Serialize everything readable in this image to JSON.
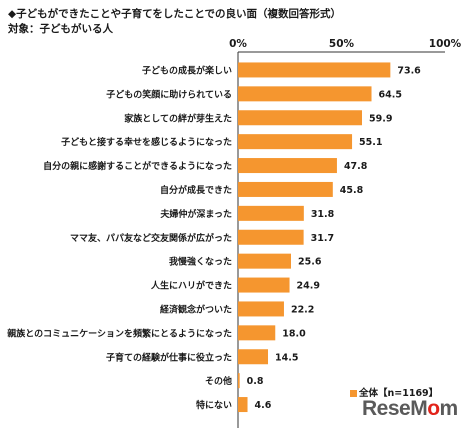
{
  "header": {
    "title": "◆子どもができたことや子育てをしたことでの良い面（複数回答形式）",
    "subtitle": "対象：子どもがいる人"
  },
  "legend": {
    "label": "全体【n=1169】"
  },
  "logo": {
    "text_main": "ReseM",
    "text_accent": "o",
    "text_end": "m"
  },
  "colors": {
    "bar": "#f5962f",
    "axis": "#333333"
  },
  "chart_data": {
    "type": "bar",
    "orientation": "horizontal",
    "title": "◆子どもができたことや子育てをしたことでの良い面（複数回答形式）",
    "xlim": [
      0,
      100
    ],
    "ticks": [
      "0%",
      "50%",
      "100%"
    ],
    "grid": false,
    "legend_position": "bottom-right",
    "categories": [
      "子どもの成長が楽しい",
      "子どもの笑顔に助けられている",
      "家族としての絆が芽生えた",
      "子どもと接する幸せを感じるようになった",
      "自分の親に感謝することができるようになった",
      "自分が成長できた",
      "夫婦仲が深まった",
      "ママ友、パパ友など交友関係が広がった",
      "我慢強くなった",
      "人生にハリができた",
      "経済観念がついた",
      "親族とのコミュニケーションを頻繁にとるようになった",
      "子育ての経験が仕事に役立った",
      "その他",
      "特にない"
    ],
    "values": [
      73.6,
      64.5,
      59.9,
      55.1,
      47.8,
      45.8,
      31.8,
      31.7,
      25.6,
      24.9,
      22.2,
      18.0,
      14.5,
      0.8,
      4.6
    ],
    "value_labels": [
      "73.6",
      "64.5",
      "59.9",
      "55.1",
      "47.8",
      "45.8",
      "31.8",
      "31.7",
      "25.6",
      "24.9",
      "22.2",
      "18.0",
      "14.5",
      "0.8",
      "4.6"
    ],
    "series": [
      {
        "name": "全体【n=1169】"
      }
    ]
  }
}
